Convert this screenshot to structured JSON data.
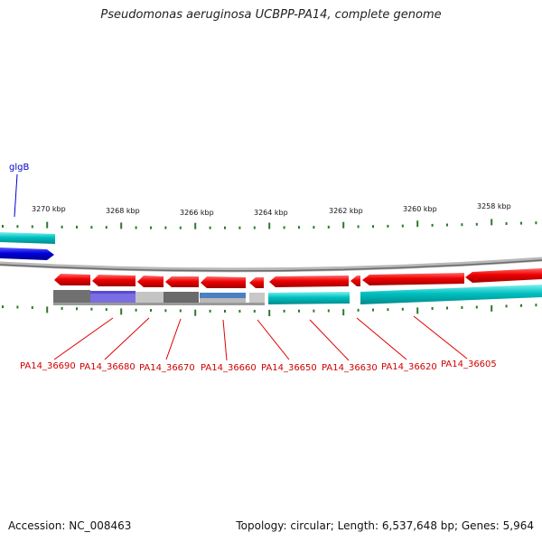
{
  "title": "Pseudomonas aeruginosa UCBPP-PA14, complete genome",
  "footer": {
    "accession": "Accession: NC_008463",
    "summary": "Topology: circular; Length: 6,537,648 bp; Genes: 5,964"
  },
  "scale_ticks": [
    "3270 kbp",
    "3268 kbp",
    "3266 kbp",
    "3264 kbp",
    "3262 kbp",
    "3260 kbp",
    "3258 kbp"
  ],
  "top_gene_label": "glgB",
  "gene_labels": [
    "PA14_36690",
    "PA14_36680",
    "PA14_36670",
    "PA14_36660",
    "PA14_36650",
    "PA14_36630",
    "PA14_36620",
    "PA14_36605"
  ],
  "colors": {
    "forward_gene": "#0000dd",
    "reverse_gene": "#ee0000",
    "cds_track": "#00bbbb",
    "backbone": "#888888",
    "tick": "#2a7a2a",
    "gene_label": "#d00000",
    "top_gene_label": "#0000cc"
  }
}
